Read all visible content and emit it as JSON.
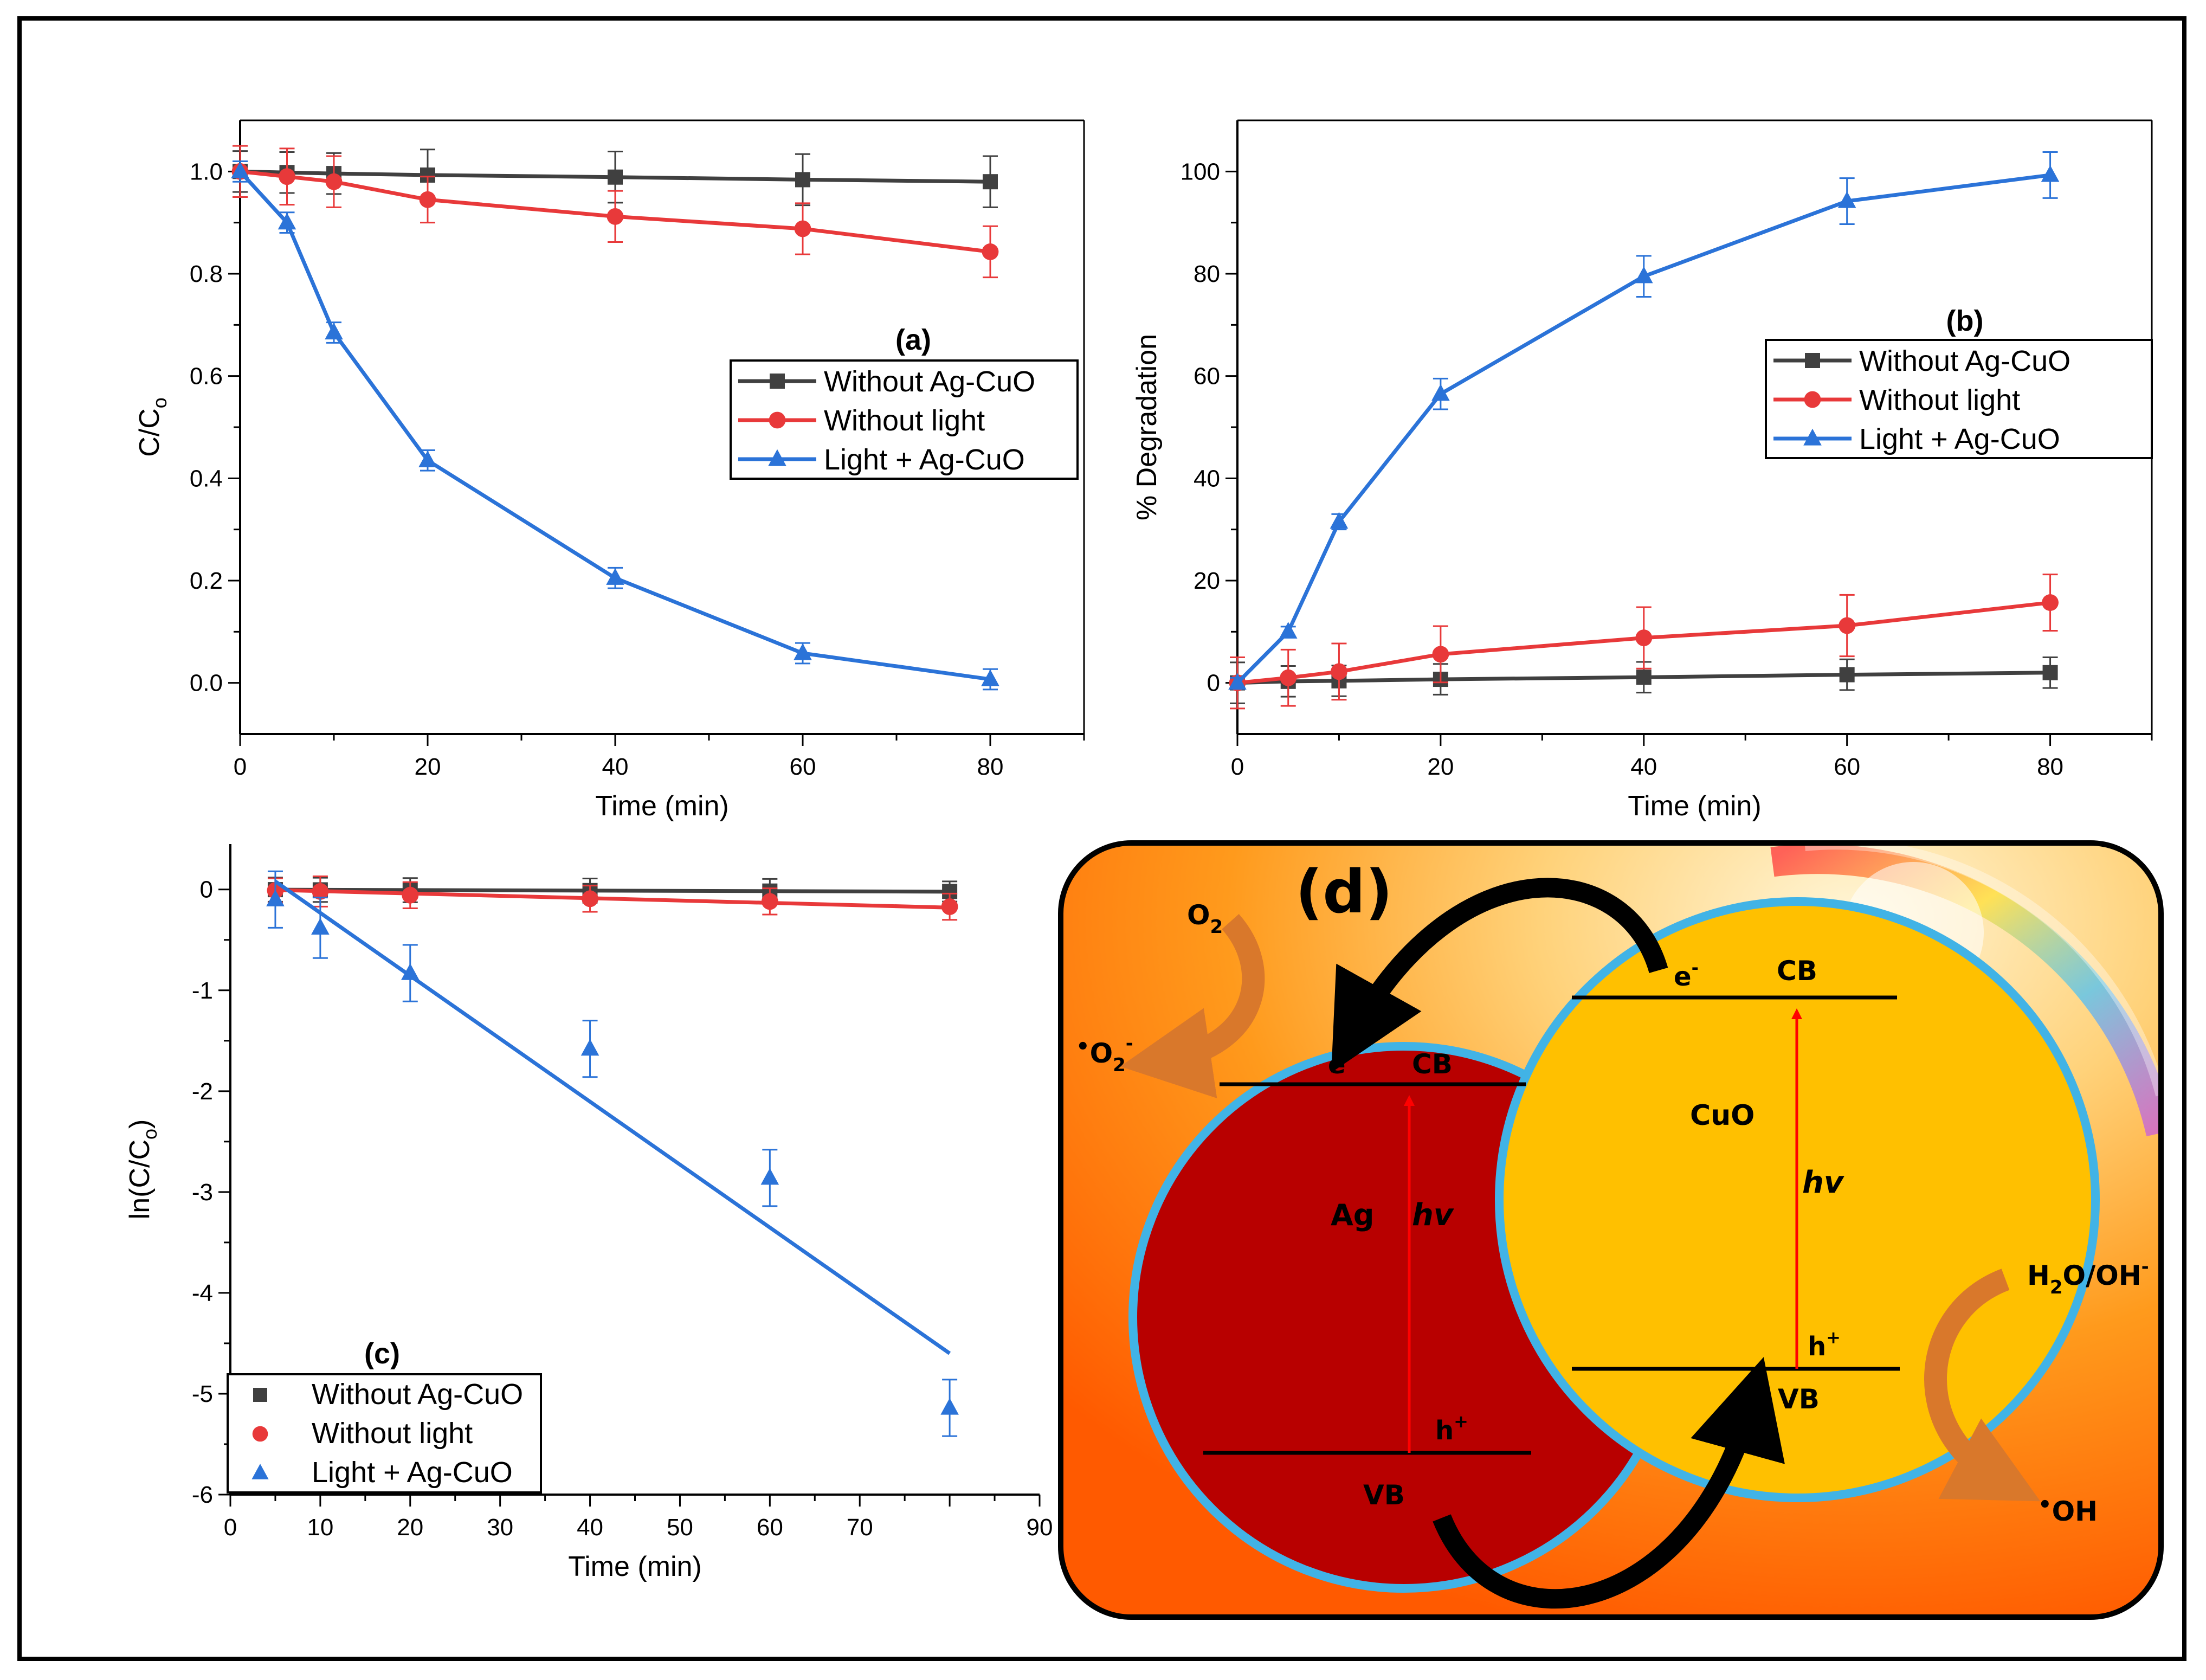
{
  "chart_data": [
    {
      "panel": "(a)",
      "type": "line",
      "xlabel": "Time (min)",
      "ylabel_base": "C/C",
      "ylabel_sub": "o",
      "xlim": [
        0,
        90
      ],
      "ylim": [
        -0.1,
        1.1
      ],
      "xticks": [
        0,
        20,
        40,
        60,
        80
      ],
      "yticks": [
        0.0,
        0.2,
        0.4,
        0.6,
        0.8,
        1.0
      ],
      "ytick_decimals": 1,
      "legend_position": "center-right",
      "series": [
        {
          "name": "Without Ag-CuO",
          "color": "#404040",
          "marker": "square",
          "x": [
            0,
            5,
            10,
            20,
            40,
            60,
            80
          ],
          "y": [
            1.0,
            0.998,
            0.996,
            0.993,
            0.989,
            0.984,
            0.98
          ],
          "err": [
            0.04,
            0.04,
            0.04,
            0.05,
            0.05,
            0.05,
            0.05
          ]
        },
        {
          "name": "Without light",
          "color": "#e8393a",
          "marker": "circle",
          "x": [
            0,
            5,
            10,
            20,
            40,
            60,
            80
          ],
          "y": [
            1.0,
            0.99,
            0.98,
            0.945,
            0.912,
            0.888,
            0.843
          ],
          "err": [
            0.05,
            0.055,
            0.05,
            0.045,
            0.05,
            0.05,
            0.05
          ]
        },
        {
          "name": "Light + Ag-CuO",
          "color": "#2b73d8",
          "marker": "triangle",
          "x": [
            0,
            5,
            10,
            20,
            40,
            60,
            80
          ],
          "y": [
            1.0,
            0.9,
            0.685,
            0.435,
            0.205,
            0.058,
            0.007
          ],
          "err": [
            0.02,
            0.02,
            0.02,
            0.02,
            0.02,
            0.02,
            0.02
          ]
        }
      ]
    },
    {
      "panel": "(b)",
      "type": "line",
      "xlabel": "Time (min)",
      "ylabel_base": "% Degradation",
      "ylabel_sub": "",
      "xlim": [
        0,
        90
      ],
      "ylim": [
        -10,
        110
      ],
      "xticks": [
        0,
        20,
        40,
        60,
        80
      ],
      "yticks": [
        0,
        20,
        40,
        60,
        80,
        100
      ],
      "ytick_decimals": 0,
      "legend_position": "center-right",
      "series": [
        {
          "name": "Without Ag-CuO",
          "color": "#404040",
          "marker": "square",
          "x": [
            0,
            5,
            10,
            20,
            40,
            60,
            80
          ],
          "y": [
            0,
            0.3,
            0.4,
            0.7,
            1.1,
            1.6,
            2.0
          ],
          "err": [
            4,
            3,
            3,
            3,
            3,
            3,
            3
          ]
        },
        {
          "name": "Without light",
          "color": "#e8393a",
          "marker": "circle",
          "x": [
            0,
            5,
            10,
            20,
            40,
            60,
            80
          ],
          "y": [
            0,
            1.0,
            2.2,
            5.6,
            8.8,
            11.2,
            15.7
          ],
          "err": [
            5,
            5.5,
            5.5,
            5.5,
            6,
            6,
            5.5
          ]
        },
        {
          "name": "Light + Ag-CuO",
          "color": "#2b73d8",
          "marker": "triangle",
          "x": [
            0,
            5,
            10,
            20,
            40,
            60,
            80
          ],
          "y": [
            0,
            10,
            31.5,
            56.5,
            79.5,
            94.2,
            99.3
          ],
          "err": [
            1,
            1,
            1.5,
            3,
            4,
            4.5,
            4.5
          ]
        }
      ]
    },
    {
      "panel": "(c)",
      "type": "scatter",
      "xlabel": "Time (min)",
      "ylabel_base": "ln(C/C",
      "ylabel_sub": "o",
      "ylabel_tail": ")",
      "xlim": [
        0,
        90
      ],
      "ylim": [
        -6,
        0.45
      ],
      "xticks": [
        0,
        10,
        20,
        30,
        40,
        50,
        60,
        70,
        90
      ],
      "yticks": [
        0,
        -1,
        -2,
        -3,
        -4,
        -5,
        -6
      ],
      "ytick_decimals": 0,
      "legend_position": "bottom-left",
      "series": [
        {
          "name": "Without Ag-CuO",
          "color": "#404040",
          "marker": "square",
          "x": [
            5,
            10,
            20,
            40,
            60,
            80
          ],
          "y": [
            -0.002,
            -0.004,
            -0.007,
            -0.011,
            -0.016,
            -0.02
          ],
          "err": [
            0.12,
            0.12,
            0.12,
            0.12,
            0.12,
            0.1
          ],
          "fit": [
            [
              5,
              -0.002
            ],
            [
              80,
              -0.022
            ]
          ]
        },
        {
          "name": "Without light",
          "color": "#e8393a",
          "marker": "circle",
          "x": [
            5,
            10,
            20,
            40,
            60,
            80
          ],
          "y": [
            -0.01,
            -0.02,
            -0.057,
            -0.092,
            -0.119,
            -0.171
          ],
          "err": [
            0.12,
            0.15,
            0.13,
            0.13,
            0.13,
            0.13
          ],
          "fit": [
            [
              5,
              -0.005
            ],
            [
              80,
              -0.18
            ]
          ]
        },
        {
          "name": "Light + Ag-CuO",
          "color": "#2b73d8",
          "marker": "triangle",
          "x": [
            5,
            10,
            20,
            40,
            60,
            80
          ],
          "y": [
            -0.1,
            -0.38,
            -0.83,
            -1.58,
            -2.86,
            -5.14
          ],
          "err": [
            0.28,
            0.3,
            0.28,
            0.28,
            0.28,
            0.28
          ],
          "fit": [
            [
              5,
              0.08
            ],
            [
              80,
              -4.6
            ]
          ]
        }
      ]
    }
  ],
  "diagram_d": {
    "label": "(d)",
    "ag": {
      "name": "Ag",
      "cb": "CB",
      "vb": "VB",
      "electron": "e",
      "electron_sup": "-",
      "hole": "h",
      "hole_sup": "+",
      "hv": "hv"
    },
    "cuo": {
      "name": "CuO",
      "cb": "CB",
      "vb": "VB",
      "electron": "e",
      "electron_sup": "-",
      "hole": "h",
      "hole_sup": "+",
      "hv": "hv"
    },
    "o2": {
      "base": "O",
      "sub": "2"
    },
    "superoxide": {
      "dot": "•",
      "base": "O",
      "sub": "2",
      "sup": "-"
    },
    "water": {
      "base1": "H",
      "sub1": "2",
      "base2": "O/OH",
      "sup": "-"
    },
    "hydroxyl": {
      "dot": "•",
      "base": "OH"
    },
    "colors": {
      "ag": "#b80000",
      "cuo": "#ffc000",
      "outline": "#41b3e6",
      "arrow": "#000000",
      "hv_arrow": "#ff0000",
      "orange_arrow": "#d9782b"
    }
  }
}
